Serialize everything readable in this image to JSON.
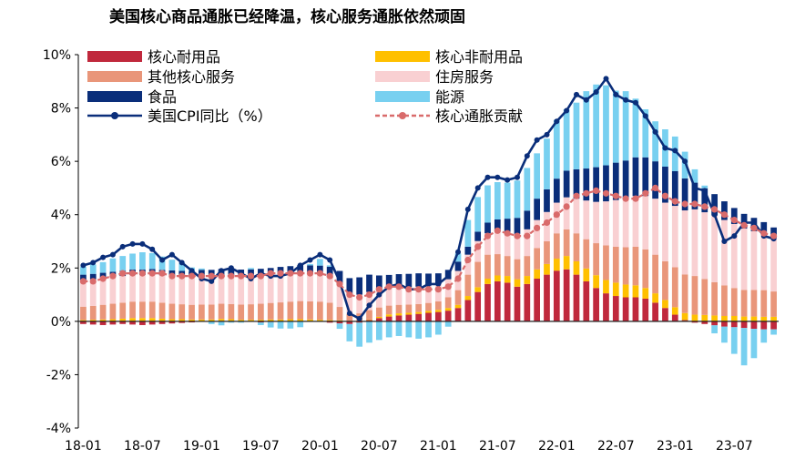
{
  "chart_data": {
    "type": "bar",
    "title": "美国核心商品通胀已经降温，核心服务通胀依然顽固",
    "xlabel": "",
    "ylabel": "",
    "ylim": [
      -4,
      10
    ],
    "yticks": [
      -4,
      -2,
      0,
      2,
      4,
      6,
      8,
      10
    ],
    "ytick_labels": [
      "-4%",
      "-2%",
      "0%",
      "2%",
      "4%",
      "6%",
      "8%",
      "10%"
    ],
    "xtick_labels": [
      "18-01",
      "18-07",
      "19-01",
      "19-07",
      "20-01",
      "20-07",
      "21-01",
      "21-07",
      "22-01",
      "22-07",
      "23-01",
      "23-07"
    ],
    "xtick_indices": [
      0,
      6,
      12,
      18,
      24,
      30,
      36,
      42,
      48,
      54,
      60,
      66
    ],
    "legend_position": "top",
    "months_count": 71,
    "colors": {
      "durable": "#C0283C",
      "nondurable": "#FFC000",
      "other_core": "#E9967A",
      "housing": "#F9D0D2",
      "food": "#0A2E7A",
      "energy": "#78D0F0",
      "cpi": "#0A2E7A",
      "core": "#D96B6B"
    },
    "series": [
      {
        "key": "durable",
        "name": "核心耐用品",
        "values": [
          -0.1,
          -0.12,
          -0.14,
          -0.12,
          -0.1,
          -0.12,
          -0.14,
          -0.12,
          -0.1,
          -0.08,
          -0.06,
          -0.04,
          -0.02,
          0,
          0.02,
          0.02,
          0,
          -0.02,
          -0.04,
          -0.03,
          -0.02,
          -0.02,
          -0.02,
          -0.02,
          -0.02,
          -0.05,
          -0.08,
          -0.1,
          -0.05,
          0.05,
          0.12,
          0.18,
          0.22,
          0.25,
          0.28,
          0.32,
          0.35,
          0.4,
          0.5,
          0.8,
          1.1,
          1.4,
          1.5,
          1.45,
          1.3,
          1.4,
          1.6,
          1.75,
          1.9,
          1.95,
          1.75,
          1.5,
          1.25,
          1.05,
          0.95,
          0.9,
          0.9,
          0.85,
          0.7,
          0.5,
          0.25,
          0.05,
          -0.05,
          -0.1,
          -0.15,
          -0.2,
          -0.22,
          -0.25,
          -0.28,
          -0.3,
          -0.3
        ]
      },
      {
        "key": "nondurable",
        "name": "核心非耐用品",
        "values": [
          0.05,
          0.06,
          0.07,
          0.08,
          0.1,
          0.12,
          0.12,
          0.12,
          0.1,
          0.08,
          0.08,
          0.07,
          0.07,
          0.07,
          0.07,
          0.06,
          0.06,
          0.06,
          0.06,
          0.07,
          0.07,
          0.08,
          0.08,
          0.07,
          0.06,
          0.05,
          0.04,
          0.02,
          0,
          0.02,
          0.05,
          0.08,
          0.08,
          0.07,
          0.07,
          0.07,
          0.08,
          0.1,
          0.12,
          0.15,
          0.18,
          0.2,
          0.22,
          0.25,
          0.28,
          0.3,
          0.35,
          0.4,
          0.45,
          0.5,
          0.5,
          0.48,
          0.48,
          0.5,
          0.5,
          0.48,
          0.45,
          0.4,
          0.35,
          0.3,
          0.28,
          0.26,
          0.25,
          0.24,
          0.22,
          0.2,
          0.2,
          0.18,
          0.18,
          0.17,
          0.17
        ]
      },
      {
        "key": "other_core",
        "name": "其他核心服务",
        "values": [
          0.5,
          0.52,
          0.55,
          0.58,
          0.6,
          0.62,
          0.62,
          0.62,
          0.6,
          0.58,
          0.56,
          0.55,
          0.56,
          0.56,
          0.57,
          0.57,
          0.57,
          0.58,
          0.6,
          0.62,
          0.64,
          0.66,
          0.68,
          0.68,
          0.68,
          0.65,
          0.5,
          0.25,
          0.3,
          0.35,
          0.35,
          0.33,
          0.32,
          0.31,
          0.3,
          0.3,
          0.32,
          0.4,
          0.55,
          0.8,
          0.95,
          0.9,
          0.8,
          0.75,
          0.75,
          0.75,
          0.8,
          0.85,
          0.95,
          1.0,
          1.05,
          1.1,
          1.2,
          1.3,
          1.35,
          1.4,
          1.45,
          1.45,
          1.45,
          1.45,
          1.5,
          1.45,
          1.45,
          1.35,
          1.25,
          1.15,
          1.05,
          1.0,
          1.0,
          1.0,
          0.95
        ]
      },
      {
        "key": "housing",
        "name": "住房服务",
        "values": [
          1.0,
          1.0,
          1.0,
          1.0,
          1.0,
          1.0,
          1.0,
          1.02,
          1.03,
          1.05,
          1.05,
          1.05,
          1.05,
          1.05,
          1.05,
          1.05,
          1.05,
          1.05,
          1.05,
          1.05,
          1.05,
          1.05,
          1.05,
          1.05,
          1.05,
          0.95,
          0.85,
          0.75,
          0.7,
          0.68,
          0.65,
          0.65,
          0.65,
          0.65,
          0.65,
          0.65,
          0.65,
          0.68,
          0.72,
          0.75,
          0.78,
          0.8,
          0.85,
          0.9,
          0.95,
          1.0,
          1.05,
          1.1,
          1.15,
          1.2,
          1.3,
          1.45,
          1.55,
          1.65,
          1.75,
          1.8,
          1.9,
          2.0,
          2.1,
          2.2,
          2.3,
          2.4,
          2.5,
          2.5,
          2.5,
          2.45,
          2.4,
          2.3,
          2.2,
          2.1,
          2.0
        ]
      },
      {
        "key": "food",
        "name": "食品",
        "values": [
          0.2,
          0.2,
          0.2,
          0.2,
          0.2,
          0.2,
          0.2,
          0.2,
          0.2,
          0.2,
          0.2,
          0.2,
          0.25,
          0.25,
          0.25,
          0.26,
          0.26,
          0.26,
          0.26,
          0.26,
          0.28,
          0.28,
          0.3,
          0.3,
          0.3,
          0.4,
          0.5,
          0.6,
          0.65,
          0.65,
          0.55,
          0.5,
          0.5,
          0.5,
          0.5,
          0.45,
          0.4,
          0.35,
          0.35,
          0.3,
          0.35,
          0.4,
          0.45,
          0.5,
          0.6,
          0.7,
          0.8,
          0.85,
          0.9,
          1.0,
          1.1,
          1.2,
          1.3,
          1.35,
          1.4,
          1.45,
          1.45,
          1.45,
          1.4,
          1.35,
          1.3,
          1.2,
          1.0,
          0.9,
          0.8,
          0.7,
          0.6,
          0.55,
          0.5,
          0.45,
          0.4
        ]
      },
      {
        "key": "energy",
        "name": "能源",
        "values": [
          0.3,
          0.35,
          0.4,
          0.5,
          0.55,
          0.6,
          0.65,
          0.6,
          0.5,
          0.4,
          0.3,
          0.15,
          0.05,
          -0.1,
          -0.15,
          -0.05,
          -0.05,
          0.05,
          -0.1,
          -0.2,
          -0.25,
          -0.25,
          -0.2,
          0.05,
          0.25,
          0.05,
          -0.2,
          -0.65,
          -0.9,
          -0.8,
          -0.7,
          -0.6,
          -0.55,
          -0.6,
          -0.65,
          -0.6,
          -0.5,
          -0.2,
          0.3,
          1.0,
          1.3,
          1.4,
          1.4,
          1.35,
          1.4,
          1.6,
          1.7,
          1.9,
          2.2,
          2.3,
          2.5,
          2.9,
          3.1,
          3.0,
          2.7,
          2.6,
          2.2,
          1.8,
          1.5,
          1.4,
          1.3,
          1.0,
          0.5,
          0.1,
          -0.3,
          -0.6,
          -1.0,
          -1.4,
          -1.1,
          -0.5,
          -0.2
        ]
      }
    ],
    "lines": [
      {
        "key": "cpi",
        "name": "美国CPI同比（%）",
        "values": [
          2.1,
          2.2,
          2.4,
          2.5,
          2.8,
          2.9,
          2.9,
          2.7,
          2.3,
          2.5,
          2.2,
          1.9,
          1.6,
          1.5,
          1.9,
          2.0,
          1.8,
          1.6,
          1.8,
          1.7,
          1.7,
          1.8,
          2.1,
          2.3,
          2.5,
          2.3,
          1.5,
          0.3,
          0.1,
          0.6,
          1.0,
          1.3,
          1.4,
          1.2,
          1.2,
          1.4,
          1.4,
          1.7,
          2.6,
          4.2,
          5.0,
          5.4,
          5.4,
          5.3,
          5.4,
          6.2,
          6.8,
          7.0,
          7.5,
          7.9,
          8.5,
          8.3,
          8.6,
          9.1,
          8.5,
          8.3,
          8.2,
          7.7,
          7.1,
          6.5,
          6.4,
          6.0,
          5.0,
          4.9,
          4.0,
          3.0,
          3.2,
          3.7,
          3.7,
          3.2,
          3.1
        ]
      },
      {
        "key": "core",
        "name": "核心通胀贡献",
        "values": [
          1.5,
          1.5,
          1.6,
          1.7,
          1.8,
          1.8,
          1.8,
          1.8,
          1.8,
          1.7,
          1.7,
          1.7,
          1.7,
          1.7,
          1.7,
          1.7,
          1.7,
          1.7,
          1.7,
          1.8,
          1.8,
          1.8,
          1.8,
          1.8,
          1.8,
          1.7,
          1.4,
          1.0,
          0.9,
          1.0,
          1.2,
          1.3,
          1.3,
          1.2,
          1.2,
          1.2,
          1.2,
          1.3,
          1.6,
          2.3,
          2.8,
          3.2,
          3.4,
          3.3,
          3.2,
          3.2,
          3.5,
          3.7,
          4.0,
          4.3,
          4.7,
          4.8,
          4.9,
          4.8,
          4.7,
          4.6,
          4.6,
          4.8,
          5.0,
          4.7,
          4.5,
          4.4,
          4.4,
          4.3,
          4.2,
          4.0,
          3.8,
          3.6,
          3.5,
          3.3,
          3.2
        ]
      }
    ]
  }
}
